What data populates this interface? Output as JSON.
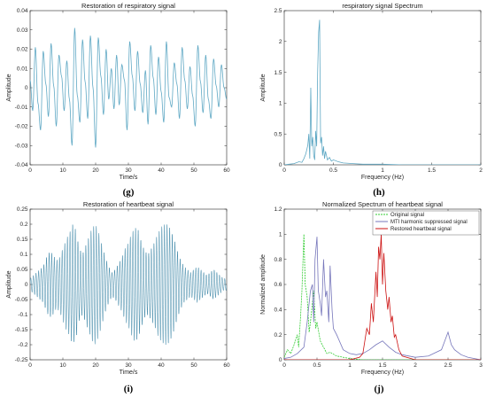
{
  "chart_data": [
    {
      "id": "g",
      "type": "line",
      "panel_label": "(g)",
      "title": "Restoration of respiratory signal",
      "xlabel": "Time/s",
      "ylabel": "Amplitude",
      "xlim": [
        0,
        60
      ],
      "ylim": [
        -0.04,
        0.04
      ],
      "xticks": [
        "0",
        "10",
        "20",
        "30",
        "40",
        "50",
        "60"
      ],
      "yticks": [
        "-0.04",
        "-0.03",
        "-0.02",
        "-0.01",
        "0",
        "0.01",
        "0.02",
        "0.03",
        "0.04"
      ],
      "color": "#5fa8c4",
      "series": [
        {
          "x": [
            0,
            0.8,
            1.6,
            2.4,
            3.2,
            4.0,
            4.8,
            5.6,
            6.4,
            7.2,
            8.0,
            8.8,
            9.6,
            10.4,
            11.2,
            12.0,
            12.8,
            13.6,
            14.4,
            15.2,
            16.0,
            16.8,
            17.6,
            18.4,
            19.2,
            20.0,
            20.8,
            21.6,
            22.4,
            23.2,
            24.0,
            24.8,
            25.6,
            26.4,
            27.2,
            28.0,
            28.8,
            29.6,
            30.4,
            31.2,
            32.0,
            32.8,
            33.6,
            34.4,
            35.2,
            36.0,
            36.8,
            37.6,
            38.4,
            39.2,
            40.0,
            40.8,
            41.6,
            42.4,
            43.2,
            44.0,
            44.8,
            45.6,
            46.4,
            47.2,
            48.0,
            48.8,
            49.6,
            50.4,
            51.2,
            52.0,
            52.8,
            53.6,
            54.4,
            55.2,
            56.0,
            56.8,
            57.6,
            58.4,
            59.2,
            60.0
          ],
          "y": [
            0.004,
            -0.012,
            0.021,
            -0.008,
            -0.022,
            0.019,
            0.002,
            -0.015,
            0.023,
            0.001,
            -0.02,
            0.017,
            0.006,
            -0.012,
            0.014,
            -0.006,
            -0.03,
            0.031,
            -0.004,
            -0.018,
            0.025,
            0.003,
            -0.016,
            0.027,
            0.0,
            -0.031,
            0.026,
            0.006,
            -0.014,
            0.02,
            -0.006,
            0.01,
            -0.011,
            0.017,
            -0.009,
            0.012,
            0.004,
            -0.022,
            0.024,
            0.006,
            -0.012,
            0.019,
            0.002,
            -0.013,
            0.009,
            -0.019,
            0.022,
            0.005,
            -0.014,
            0.016,
            -0.002,
            -0.018,
            0.024,
            -0.005,
            -0.01,
            0.013,
            0.002,
            -0.016,
            0.021,
            0.004,
            -0.011,
            0.011,
            -0.004,
            -0.02,
            0.022,
            0.003,
            -0.013,
            0.017,
            -0.006,
            -0.016,
            0.015,
            0.001,
            -0.01,
            0.012,
            0.0,
            -0.006
          ]
        }
      ]
    },
    {
      "id": "h",
      "type": "line",
      "panel_label": "(h)",
      "title": "respiratory signal Spectrum",
      "xlabel": "Frequency (Hz)",
      "ylabel": "Amplitude",
      "xlim": [
        0,
        2
      ],
      "ylim": [
        0,
        2.5
      ],
      "xticks": [
        "0",
        "0.5",
        "1",
        "1.5",
        "2"
      ],
      "yticks": [
        "0",
        "0.5",
        "1",
        "1.5",
        "2",
        "2.5"
      ],
      "color": "#5fa8c4",
      "series": [
        {
          "x": [
            0,
            0.05,
            0.1,
            0.15,
            0.18,
            0.2,
            0.22,
            0.24,
            0.25,
            0.26,
            0.27,
            0.28,
            0.29,
            0.3,
            0.31,
            0.32,
            0.33,
            0.34,
            0.35,
            0.36,
            0.37,
            0.38,
            0.39,
            0.4,
            0.41,
            0.42,
            0.43,
            0.44,
            0.46,
            0.48,
            0.5,
            0.55,
            0.6,
            0.7,
            0.8,
            1.0,
            1.2,
            1.5,
            1.8,
            2.0
          ],
          "y": [
            0.0,
            0.01,
            0.02,
            0.05,
            0.04,
            0.1,
            0.18,
            0.32,
            0.5,
            0.1,
            1.25,
            0.3,
            0.45,
            0.15,
            0.08,
            0.55,
            0.3,
            1.5,
            2.15,
            2.35,
            0.35,
            0.45,
            0.15,
            0.3,
            0.1,
            0.22,
            0.15,
            0.08,
            0.12,
            0.06,
            0.08,
            0.05,
            0.03,
            0.02,
            0.01,
            0.01,
            0.0,
            0.0,
            0.0,
            0.0
          ]
        }
      ]
    },
    {
      "id": "i",
      "type": "line",
      "panel_label": "(i)",
      "title": "Restoration of heartbeat signal",
      "xlabel": "Time/s",
      "ylabel": "Amplitude",
      "xlim": [
        0,
        60
      ],
      "ylim": [
        -0.25,
        0.25
      ],
      "xticks": [
        "0",
        "10",
        "20",
        "30",
        "40",
        "50",
        "60"
      ],
      "yticks": [
        "-0.25",
        "-0.2",
        "-0.15",
        "-0.1",
        "-0.05",
        "0",
        "0.05",
        "0.1",
        "0.15",
        "0.2",
        "0.25"
      ],
      "color": "#3f88a8",
      "series": [
        {
          "x": [
            0,
            1,
            2,
            3,
            4,
            5,
            6,
            7,
            8,
            9,
            10,
            11,
            12,
            13,
            14,
            15,
            16,
            17,
            18,
            19,
            20,
            21,
            22,
            23,
            24,
            25,
            26,
            27,
            28,
            29,
            30,
            31,
            32,
            33,
            34,
            35,
            36,
            37,
            38,
            39,
            40,
            41,
            42,
            43,
            44,
            45,
            46,
            47,
            48,
            49,
            50,
            51,
            52,
            53,
            54,
            55,
            56,
            57,
            58,
            59,
            60
          ],
          "y_envelope": [
            0.02,
            0.03,
            0.04,
            0.05,
            0.06,
            0.09,
            0.11,
            0.1,
            0.08,
            0.09,
            0.12,
            0.15,
            0.17,
            0.2,
            0.18,
            0.12,
            0.1,
            0.13,
            0.16,
            0.19,
            0.2,
            0.17,
            0.13,
            0.09,
            0.06,
            0.04,
            0.05,
            0.07,
            0.09,
            0.12,
            0.14,
            0.17,
            0.19,
            0.18,
            0.14,
            0.11,
            0.1,
            0.12,
            0.14,
            0.17,
            0.19,
            0.2,
            0.2,
            0.18,
            0.15,
            0.11,
            0.08,
            0.06,
            0.05,
            0.04,
            0.05,
            0.06,
            0.05,
            0.04,
            0.03,
            0.04,
            0.05,
            0.04,
            0.03,
            0.02,
            0.02
          ]
        }
      ]
    },
    {
      "id": "j",
      "type": "line",
      "panel_label": "(j)",
      "title": "Normalized Spectrum of heartbeat signal",
      "xlabel": "Frequency (Hz)",
      "ylabel": "Normalized amplitude",
      "xlim": [
        0,
        3
      ],
      "ylim": [
        0,
        1.2
      ],
      "xticks": [
        "0",
        "0.5",
        "1",
        "1.5",
        "2",
        "2.5",
        "3"
      ],
      "yticks": [
        "0",
        "0.2",
        "0.4",
        "0.6",
        "0.8",
        "1",
        "1.2"
      ],
      "legend": "top-right",
      "series": [
        {
          "name": "Original signal",
          "color": "#33cc33",
          "dashed": true,
          "x": [
            0,
            0.05,
            0.1,
            0.15,
            0.2,
            0.22,
            0.25,
            0.27,
            0.3,
            0.32,
            0.35,
            0.38,
            0.4,
            0.43,
            0.45,
            0.48,
            0.5,
            0.55,
            0.6,
            0.65,
            0.7,
            0.8,
            0.9,
            1.0,
            1.2,
            1.5,
            2.0,
            2.5,
            3.0
          ],
          "y": [
            0.02,
            0.08,
            0.05,
            0.12,
            0.2,
            0.1,
            0.35,
            0.55,
            1.0,
            0.6,
            0.5,
            0.22,
            0.3,
            0.45,
            0.55,
            0.25,
            0.3,
            0.15,
            0.1,
            0.05,
            0.06,
            0.03,
            0.02,
            0.01,
            0.0,
            0.0,
            0.0,
            0.0,
            0.0
          ]
        },
        {
          "name": "MTI harmonic suppressed signal",
          "color": "#7777bb",
          "dashed": false,
          "x": [
            0,
            0.1,
            0.2,
            0.3,
            0.35,
            0.4,
            0.43,
            0.45,
            0.47,
            0.5,
            0.52,
            0.55,
            0.57,
            0.6,
            0.63,
            0.65,
            0.68,
            0.7,
            0.73,
            0.75,
            0.8,
            0.9,
            1.0,
            1.1,
            1.2,
            1.3,
            1.4,
            1.5,
            1.6,
            1.7,
            1.8,
            2.0,
            2.2,
            2.4,
            2.45,
            2.5,
            2.55,
            2.6,
            2.7,
            2.8,
            3.0
          ],
          "y": [
            0.01,
            0.02,
            0.05,
            0.1,
            0.3,
            0.55,
            0.6,
            0.3,
            0.8,
            0.98,
            0.55,
            0.45,
            0.35,
            0.8,
            0.5,
            0.55,
            0.3,
            0.75,
            0.4,
            0.25,
            0.2,
            0.08,
            0.05,
            0.04,
            0.05,
            0.08,
            0.12,
            0.15,
            0.1,
            0.06,
            0.04,
            0.02,
            0.03,
            0.08,
            0.15,
            0.22,
            0.12,
            0.08,
            0.04,
            0.02,
            0.0
          ]
        },
        {
          "name": "Restored heartbeat signal",
          "color": "#cc1111",
          "dashed": false,
          "x": [
            0,
            0.5,
            1.0,
            1.15,
            1.2,
            1.23,
            1.26,
            1.3,
            1.33,
            1.36,
            1.4,
            1.42,
            1.44,
            1.46,
            1.48,
            1.5,
            1.52,
            1.55,
            1.58,
            1.6,
            1.63,
            1.65,
            1.68,
            1.7,
            1.75,
            1.8,
            2.0,
            3.0
          ],
          "y": [
            0.0,
            0.0,
            0.0,
            0.02,
            0.05,
            0.15,
            0.25,
            0.2,
            0.45,
            0.3,
            0.7,
            0.5,
            0.9,
            0.8,
            1.0,
            0.6,
            0.85,
            0.55,
            0.4,
            0.5,
            0.3,
            0.35,
            0.18,
            0.2,
            0.08,
            0.03,
            0.0,
            0.0
          ]
        }
      ]
    }
  ]
}
